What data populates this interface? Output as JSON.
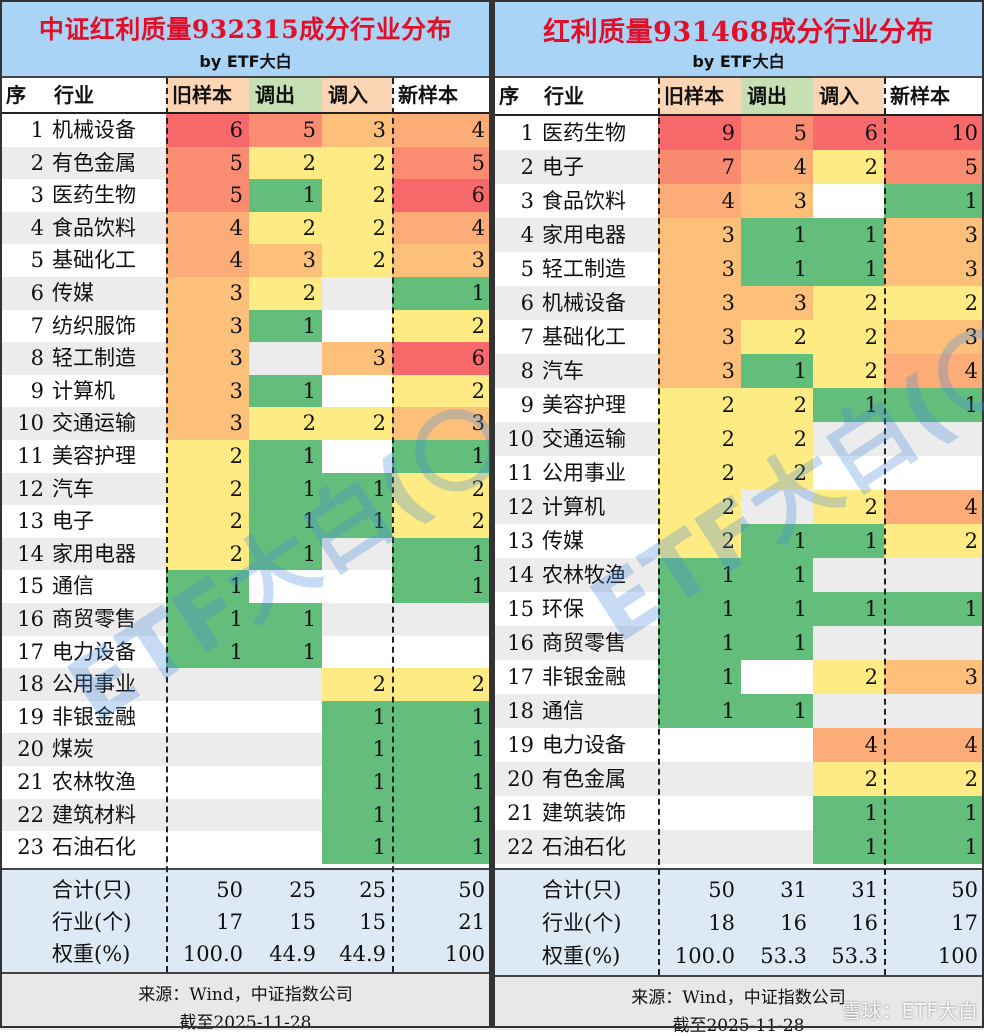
{
  "colors": {
    "c10": "#f8696b",
    "c9": "#f8696b",
    "c7": "#f98b71",
    "c6": "#f8696b",
    "c5": "#fa8c71",
    "c4": "#fbac77",
    "c3": "#fcc07b",
    "c2": "#ffeb84",
    "c1": "#63be7b",
    "empty_a": "#ffffff",
    "empty_b": "#ececec"
  },
  "left": {
    "title": "中证红利质量932315成分行业分布",
    "byline": "by ETF大白",
    "headers": [
      "序",
      "行业",
      "旧样本",
      "调出",
      "调入",
      "新样本"
    ],
    "rows": [
      [
        "1",
        "机械设备",
        "6",
        "5",
        "3",
        "4"
      ],
      [
        "2",
        "有色金属",
        "5",
        "2",
        "2",
        "5"
      ],
      [
        "3",
        "医药生物",
        "5",
        "1",
        "2",
        "6"
      ],
      [
        "4",
        "食品饮料",
        "4",
        "2",
        "2",
        "4"
      ],
      [
        "5",
        "基础化工",
        "4",
        "3",
        "2",
        "3"
      ],
      [
        "6",
        "传媒",
        "3",
        "2",
        "",
        "1"
      ],
      [
        "7",
        "纺织服饰",
        "3",
        "1",
        "",
        "2"
      ],
      [
        "8",
        "轻工制造",
        "3",
        "",
        "3",
        "6"
      ],
      [
        "9",
        "计算机",
        "3",
        "1",
        "",
        "2"
      ],
      [
        "10",
        "交通运输",
        "3",
        "2",
        "2",
        "3"
      ],
      [
        "11",
        "美容护理",
        "2",
        "1",
        "",
        "1"
      ],
      [
        "12",
        "汽车",
        "2",
        "1",
        "1",
        "2"
      ],
      [
        "13",
        "电子",
        "2",
        "1",
        "1",
        "2"
      ],
      [
        "14",
        "家用电器",
        "2",
        "1",
        "",
        "1"
      ],
      [
        "15",
        "通信",
        "1",
        "",
        "",
        "1"
      ],
      [
        "16",
        "商贸零售",
        "1",
        "1",
        "",
        ""
      ],
      [
        "17",
        "电力设备",
        "1",
        "1",
        "",
        ""
      ],
      [
        "18",
        "公用事业",
        "",
        "",
        "2",
        "2"
      ],
      [
        "19",
        "非银金融",
        "",
        "",
        "1",
        "1"
      ],
      [
        "20",
        "煤炭",
        "",
        "",
        "1",
        "1"
      ],
      [
        "21",
        "农林牧渔",
        "",
        "",
        "1",
        "1"
      ],
      [
        "22",
        "建筑材料",
        "",
        "",
        "1",
        "1"
      ],
      [
        "23",
        "石油石化",
        "",
        "",
        "1",
        "1"
      ]
    ],
    "summary": [
      [
        "合计(只)",
        "50",
        "25",
        "25",
        "50"
      ],
      [
        "行业(个)",
        "17",
        "15",
        "15",
        "21"
      ],
      [
        "权重(%)",
        "100.0",
        "44.9",
        "44.9",
        "100"
      ]
    ],
    "source": "来源：Wind，中证指数公司",
    "date": "截至2025-11-28",
    "watermark": "ETF大白(〇—〇)"
  },
  "right": {
    "title": "红利质量931468成分行业分布",
    "byline": "by ETF大白",
    "headers": [
      "序",
      "行业",
      "旧样本",
      "调出",
      "调入",
      "新样本"
    ],
    "rows": [
      [
        "1",
        "医药生物",
        "9",
        "5",
        "6",
        "10"
      ],
      [
        "2",
        "电子",
        "7",
        "4",
        "2",
        "5"
      ],
      [
        "3",
        "食品饮料",
        "4",
        "3",
        "",
        "1"
      ],
      [
        "4",
        "家用电器",
        "3",
        "1",
        "1",
        "3"
      ],
      [
        "5",
        "轻工制造",
        "3",
        "1",
        "1",
        "3"
      ],
      [
        "6",
        "机械设备",
        "3",
        "3",
        "2",
        "2"
      ],
      [
        "7",
        "基础化工",
        "3",
        "2",
        "2",
        "3"
      ],
      [
        "8",
        "汽车",
        "3",
        "1",
        "2",
        "4"
      ],
      [
        "9",
        "美容护理",
        "2",
        "2",
        "1",
        "1"
      ],
      [
        "10",
        "交通运输",
        "2",
        "2",
        "",
        ""
      ],
      [
        "11",
        "公用事业",
        "2",
        "2",
        "",
        ""
      ],
      [
        "12",
        "计算机",
        "2",
        "",
        "2",
        "4"
      ],
      [
        "13",
        "传媒",
        "2",
        "1",
        "1",
        "2"
      ],
      [
        "14",
        "农林牧渔",
        "1",
        "1",
        "",
        ""
      ],
      [
        "15",
        "环保",
        "1",
        "1",
        "1",
        "1"
      ],
      [
        "16",
        "商贸零售",
        "1",
        "1",
        "",
        ""
      ],
      [
        "17",
        "非银金融",
        "1",
        "",
        "2",
        "3"
      ],
      [
        "18",
        "通信",
        "1",
        "1",
        "",
        ""
      ],
      [
        "19",
        "电力设备",
        "",
        "",
        "4",
        "4"
      ],
      [
        "20",
        "有色金属",
        "",
        "",
        "2",
        "2"
      ],
      [
        "21",
        "建筑装饰",
        "",
        "",
        "1",
        "1"
      ],
      [
        "22",
        "石油石化",
        "",
        "",
        "1",
        "1"
      ]
    ],
    "summary": [
      [
        "合计(只)",
        "50",
        "31",
        "31",
        "50"
      ],
      [
        "行业(个)",
        "18",
        "16",
        "16",
        "17"
      ],
      [
        "权重(%)",
        "100.0",
        "53.3",
        "53.3",
        "100"
      ]
    ],
    "source": "来源：Wind，中证指数公司",
    "date": "截至2025-11-28",
    "watermark": "ETF大白(〇—〇)",
    "corner_mark": "雪球：ETF大白"
  }
}
